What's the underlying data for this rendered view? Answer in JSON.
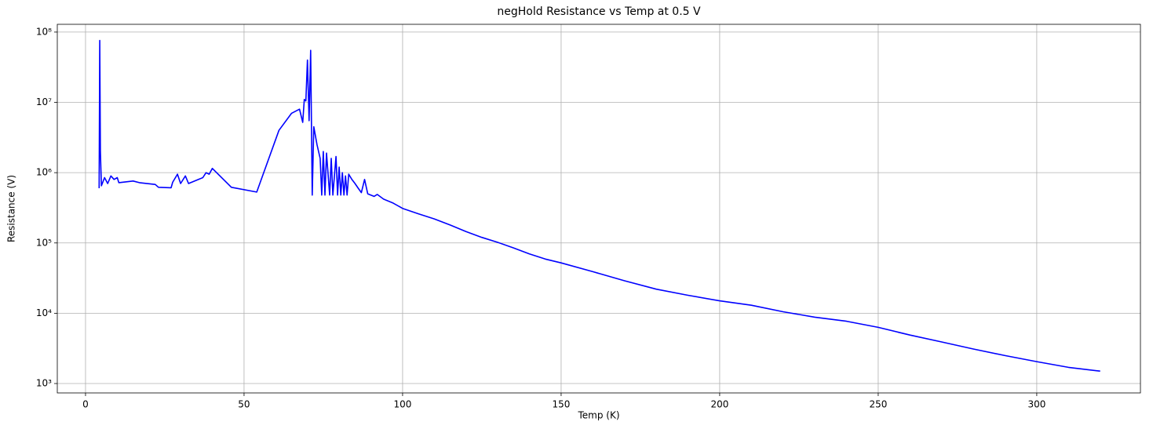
{
  "chart_data": {
    "type": "line",
    "title": "negHold Resistance vs Temp at 0.5 V",
    "x_label": "Temp (K)",
    "y_label": "Resistance (V)",
    "color": "#0000ff",
    "grid": true,
    "y_log": true,
    "xlim": [
      -8.9,
      332.7
    ],
    "ylim": [
      735,
      129000000
    ],
    "xticks": [
      0,
      50,
      100,
      150,
      200,
      250,
      300
    ],
    "yticks": [
      {
        "value": 1000,
        "label": "10³"
      },
      {
        "value": 10000,
        "label": "10⁴"
      },
      {
        "value": 100000,
        "label": "10⁵"
      },
      {
        "value": 1000000,
        "label": "10⁶"
      },
      {
        "value": 10000000,
        "label": "10⁷"
      },
      {
        "value": 100000000,
        "label": "10⁸"
      }
    ],
    "x": [
      4.3,
      4.5,
      4.7,
      5,
      6,
      7,
      8,
      9,
      10,
      10.5,
      15,
      17,
      22,
      23,
      27,
      27.5,
      29,
      30,
      31.5,
      32.5,
      37,
      38,
      39,
      40,
      46,
      54,
      61,
      65,
      67.5,
      68.5,
      69,
      69.5,
      70,
      70.5,
      71,
      71.5,
      72,
      73,
      74,
      74.5,
      75,
      75.5,
      76,
      77,
      77.5,
      78,
      79,
      79.5,
      80,
      80.5,
      81,
      81.5,
      82,
      82.5,
      83,
      84,
      85,
      86,
      87,
      88,
      89,
      90,
      91,
      92,
      94,
      97,
      100,
      105,
      110,
      115,
      120,
      125,
      130,
      135,
      140,
      145,
      150,
      160,
      170,
      180,
      190,
      200,
      210,
      220,
      230,
      240,
      250,
      260,
      270,
      280,
      290,
      300,
      310,
      320
    ],
    "values": [
      600000,
      76000000,
      2000000,
      650000,
      850000,
      700000,
      900000,
      800000,
      850000,
      720000,
      760000,
      720000,
      680000,
      620000,
      610000,
      730000,
      950000,
      700000,
      900000,
      700000,
      850000,
      1000000,
      950000,
      1150000,
      620000,
      530000,
      4000000,
      7000000,
      8000000,
      5200000,
      11000000,
      10500000,
      40000000,
      5500000,
      55000000,
      480000,
      4500000,
      2500000,
      1600000,
      480000,
      2000000,
      480000,
      1900000,
      480000,
      1600000,
      480000,
      1700000,
      480000,
      1200000,
      480000,
      1000000,
      480000,
      900000,
      480000,
      950000,
      800000,
      700000,
      600000,
      520000,
      800000,
      500000,
      480000,
      460000,
      490000,
      420000,
      370000,
      310000,
      260000,
      220000,
      180000,
      145000,
      120000,
      102000,
      85000,
      70000,
      59000,
      52000,
      39000,
      29000,
      22000,
      18000,
      15000,
      13000,
      10500,
      8800,
      7700,
      6300,
      4900,
      3900,
      3100,
      2500,
      2050,
      1700,
      1500
    ]
  }
}
